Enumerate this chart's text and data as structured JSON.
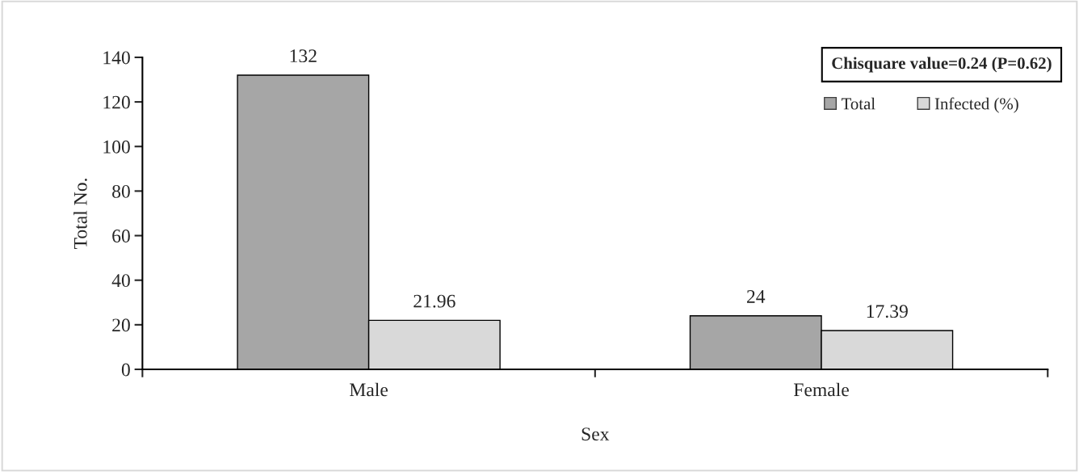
{
  "chart_data": {
    "type": "bar",
    "xlabel": "Sex",
    "ylabel": "Total No.",
    "categories": [
      "Male",
      "Female"
    ],
    "series": [
      {
        "name": "Total",
        "color": "#a6a6a6",
        "values": [
          132,
          24
        ]
      },
      {
        "name": "Infected (%)",
        "color": "#d9d9d9",
        "values": [
          21.96,
          17.39
        ]
      }
    ],
    "ylim": [
      0,
      140
    ],
    "yticks": [
      0,
      20,
      40,
      60,
      80,
      100,
      120,
      140
    ],
    "data_labels": true,
    "grid": false,
    "legend": "top right",
    "annotations": [
      "Chisquare value=0.24 (P=0.62)"
    ]
  }
}
